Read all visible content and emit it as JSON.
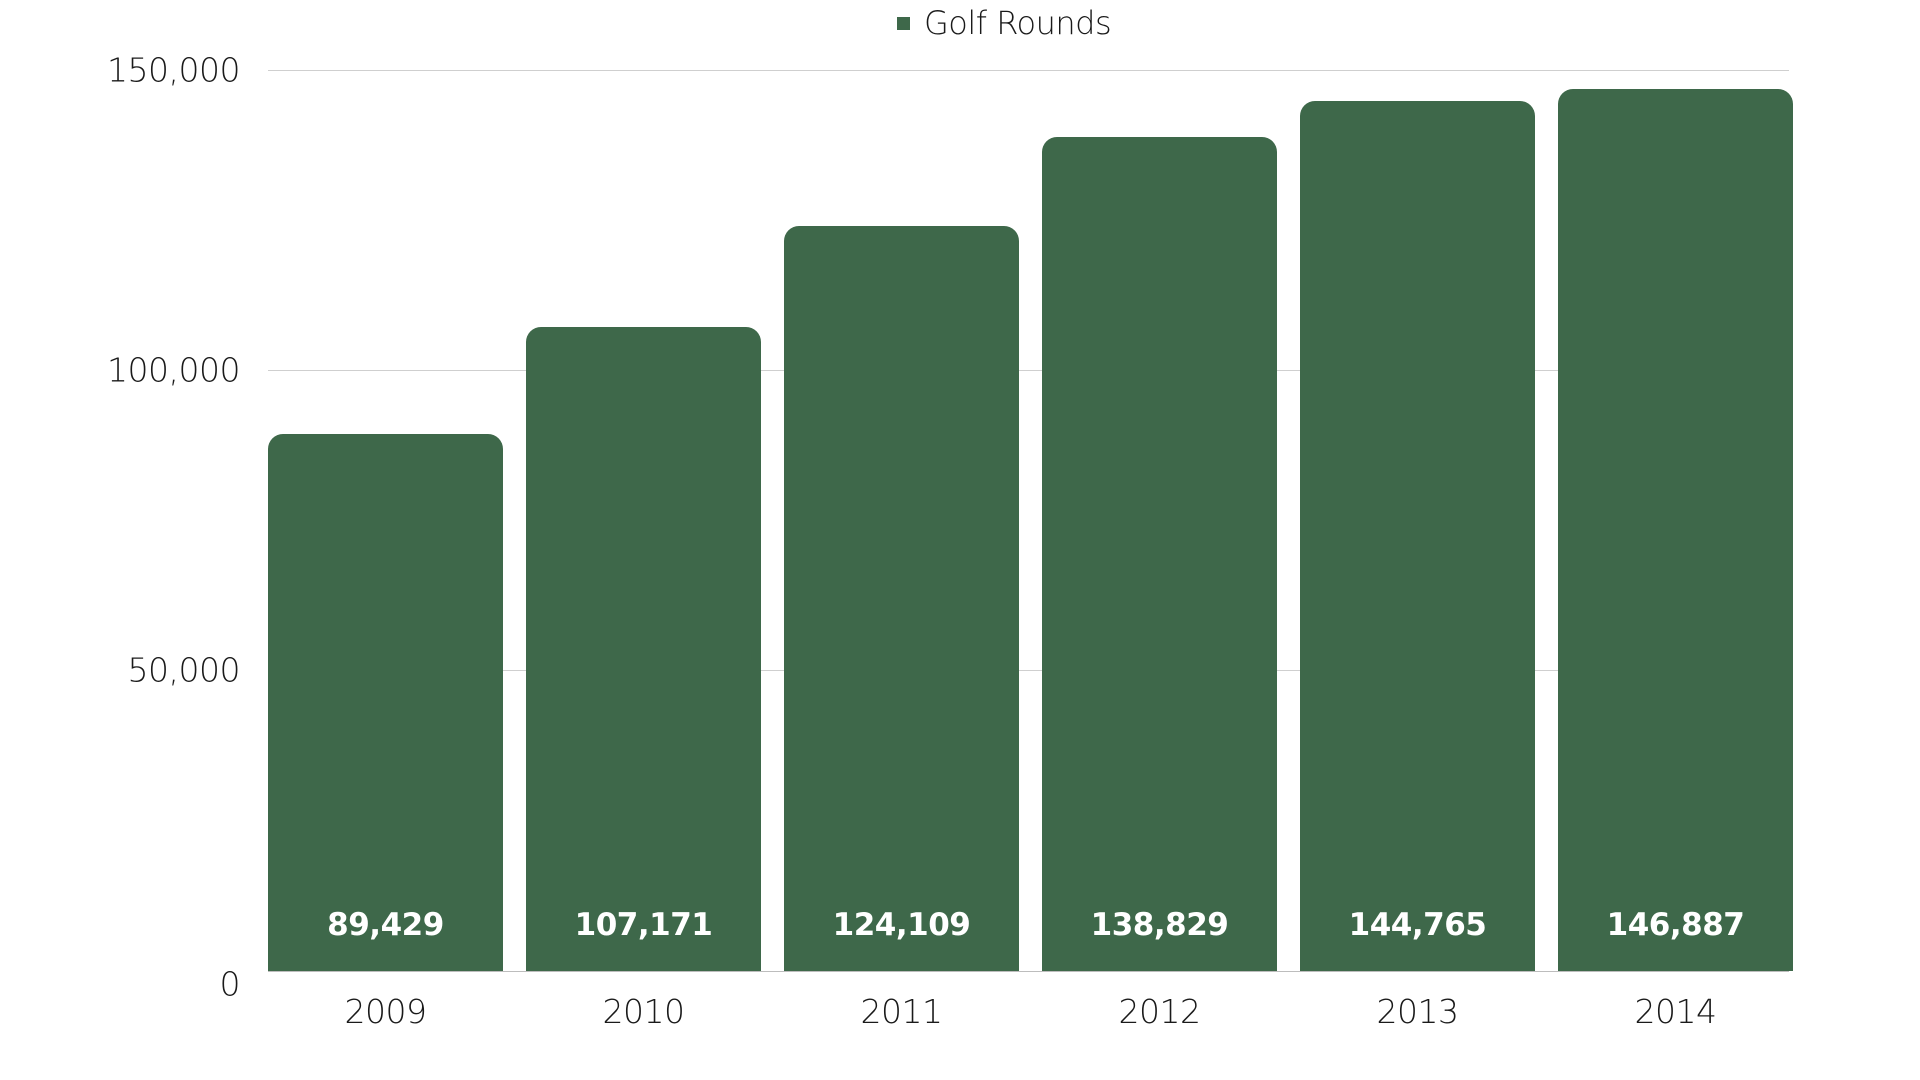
{
  "legend": {
    "label": "Golf Rounds",
    "color": "#3e684a"
  },
  "y_axis": {
    "ticks": [
      "150,000",
      "100,000",
      "50,000",
      "0"
    ]
  },
  "x_axis": {
    "ticks": [
      "2009",
      "2010",
      "2011",
      "2012",
      "2013",
      "2014"
    ]
  },
  "bars": [
    {
      "year": "2009",
      "label": "89,429"
    },
    {
      "year": "2010",
      "label": "107,171"
    },
    {
      "year": "2011",
      "label": "124,109"
    },
    {
      "year": "2012",
      "label": "138,829"
    },
    {
      "year": "2013",
      "label": "144,765"
    },
    {
      "year": "2014",
      "label": "146,887"
    }
  ],
  "chart_data": {
    "type": "bar",
    "title": "",
    "xlabel": "",
    "ylabel": "",
    "categories": [
      "2009",
      "2010",
      "2011",
      "2012",
      "2013",
      "2014"
    ],
    "series": [
      {
        "name": "Golf Rounds",
        "color": "#3e684a",
        "values": [
          89429,
          107171,
          124109,
          138829,
          144765,
          146887
        ]
      }
    ],
    "ylim": [
      0,
      150000
    ],
    "yticks": [
      0,
      50000,
      100000,
      150000
    ],
    "grid": true,
    "legend_position": "top",
    "data_labels": true
  }
}
